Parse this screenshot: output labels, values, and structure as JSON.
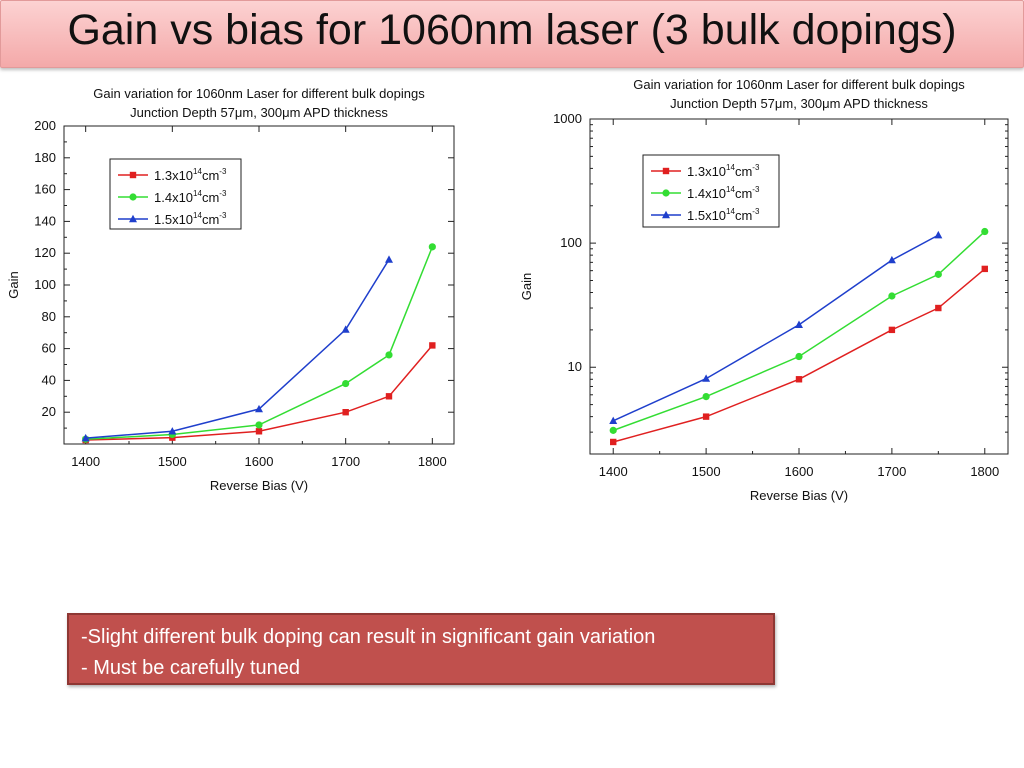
{
  "slide": {
    "title": "Gain vs bias for 1060nm laser (3 bulk dopings)",
    "notes": [
      "-Slight different bulk doping can result in significant gain variation",
      "- Must be carefully tuned"
    ]
  },
  "colors": {
    "red": "#e02020",
    "green": "#33dd33",
    "blue": "#1f3fcc",
    "title_bg": "#f4a9a9",
    "note_bg": "#c0504d"
  },
  "chart_data": [
    {
      "type": "line",
      "title": "Gain variation for 1060nm Laser for different bulk dopings",
      "subtitle": "Junction Depth  57μm, 300μm APD thickness",
      "xlabel": "Reverse Bias (V)",
      "ylabel": "Gain",
      "xlim": [
        1375,
        1825
      ],
      "ylim": [
        0,
        200
      ],
      "yscale": "linear",
      "xticks": [
        "1400",
        "1500",
        "1600",
        "1700",
        "1800"
      ],
      "yticks": [
        "20",
        "40",
        "60",
        "80",
        "100",
        "120",
        "140",
        "160",
        "180",
        "200"
      ],
      "legend_position": "top-left",
      "series": [
        {
          "name": "1.3x10",
          "sup": "14",
          "unit": "cm",
          "unit_sup": "-3",
          "marker": "square",
          "color": "#e02020",
          "x": [
            1400,
            1500,
            1600,
            1700,
            1750,
            1800
          ],
          "y": [
            2.5,
            4,
            8,
            20,
            30,
            62
          ]
        },
        {
          "name": "1.4x10",
          "sup": "14",
          "unit": "cm",
          "unit_sup": "-3",
          "marker": "circle",
          "color": "#33dd33",
          "x": [
            1400,
            1500,
            1600,
            1700,
            1750,
            1800
          ],
          "y": [
            3,
            6,
            12,
            38,
            56,
            124
          ]
        },
        {
          "name": "1.5x10",
          "sup": "14",
          "unit": "cm",
          "unit_sup": "-3",
          "marker": "triangle",
          "color": "#1f3fcc",
          "x": [
            1400,
            1500,
            1600,
            1700,
            1750
          ],
          "y": [
            3.7,
            8,
            22,
            72,
            116
          ]
        }
      ]
    },
    {
      "type": "line",
      "title": "Gain variation for 1060nm Laser for different bulk dopings",
      "subtitle": "Junction Depth  57μm, 300μm APD thickness",
      "xlabel": "Reverse Bias (V)",
      "ylabel": "Gain",
      "xlim": [
        1375,
        1825
      ],
      "ylim": [
        2,
        1000
      ],
      "yscale": "log",
      "xticks": [
        "1400",
        "1500",
        "1600",
        "1700",
        "1800"
      ],
      "yticks": [
        "10",
        "100",
        "1000"
      ],
      "legend_position": "top-left",
      "series": [
        {
          "name": "1.3x10",
          "sup": "14",
          "unit": "cm",
          "unit_sup": "-3",
          "marker": "square",
          "color": "#e02020",
          "x": [
            1400,
            1500,
            1600,
            1700,
            1750,
            1800
          ],
          "y": [
            2.5,
            4,
            8,
            20,
            30,
            62
          ]
        },
        {
          "name": "1.4x10",
          "sup": "14",
          "unit": "cm",
          "unit_sup": "-3",
          "marker": "circle",
          "color": "#33dd33",
          "x": [
            1400,
            1500,
            1600,
            1700,
            1750,
            1800
          ],
          "y": [
            3.1,
            5.8,
            12.2,
            37.5,
            56,
            124
          ]
        },
        {
          "name": "1.5x10",
          "sup": "14",
          "unit": "cm",
          "unit_sup": "-3",
          "marker": "triangle",
          "color": "#1f3fcc",
          "x": [
            1400,
            1500,
            1600,
            1700,
            1750
          ],
          "y": [
            3.7,
            8.1,
            22,
            73,
            116
          ]
        }
      ]
    }
  ]
}
